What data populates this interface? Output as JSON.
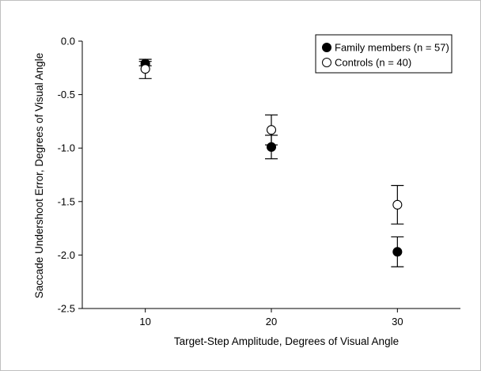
{
  "chart_data": {
    "type": "scatter",
    "title": "",
    "xlabel": "Target-Step Amplitude, Degrees of Visual Angle",
    "ylabel": "Saccade Undershoot Error, Degrees of Visual Angle",
    "x": [
      10,
      20,
      30
    ],
    "x_ticks": [
      "10",
      "20",
      "30"
    ],
    "xlim": [
      5,
      35
    ],
    "ylim": [
      -2.5,
      0.0
    ],
    "y_ticks": [
      "0.0",
      "-0.5",
      "-1.0",
      "-1.5",
      "-2.0",
      "-2.5"
    ],
    "y_tick_values": [
      0.0,
      -0.5,
      -1.0,
      -1.5,
      -2.0,
      -2.5
    ],
    "grid": false,
    "legend_position": "top-right",
    "series": [
      {
        "name": "Family members (n = 57)",
        "marker": "filled-circle",
        "values": [
          -0.21,
          -0.99,
          -1.97
        ],
        "error": [
          0.02,
          0.11,
          0.14
        ]
      },
      {
        "name": "Controls (n = 40)",
        "marker": "open-circle",
        "values": [
          -0.26,
          -0.83,
          -1.53
        ],
        "error": [
          0.09,
          0.14,
          0.18
        ]
      }
    ]
  }
}
